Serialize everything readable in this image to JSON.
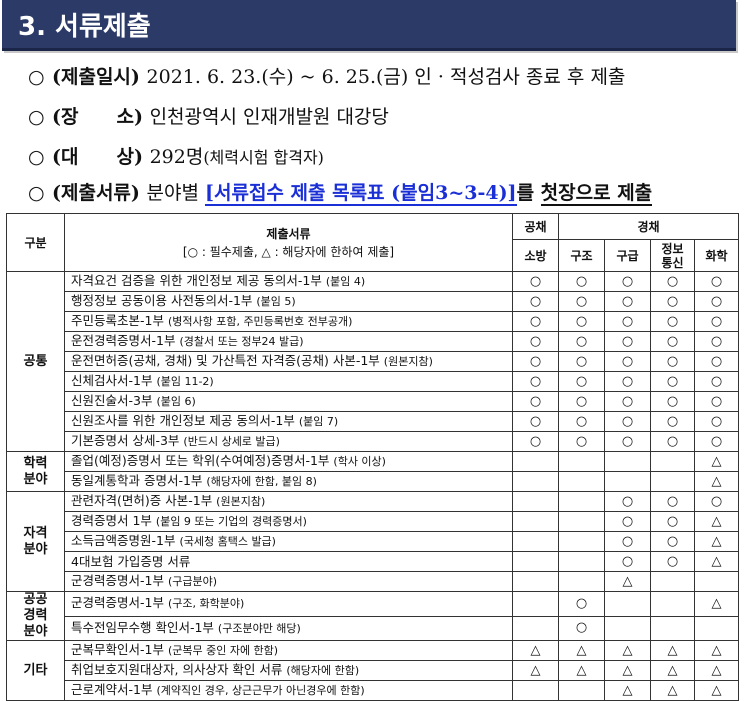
{
  "section_title": "3. 서류제출",
  "bullet_symbol": "○",
  "info": [
    {
      "label": "(제출일시)",
      "parts": [
        {
          "t": "2021. 6. 23.(수) ~ 6. 25.(금) 인 · 적성검사 종료 후 제출",
          "s": ""
        }
      ]
    },
    {
      "label": "(장　　소)",
      "parts": [
        {
          "t": "인천광역시 인재개발원 대강당",
          "s": ""
        }
      ]
    },
    {
      "label": "(대　　상)",
      "parts": [
        {
          "t": "292명",
          "s": ""
        },
        {
          "t": "(체력시험 합격자)",
          "s": "small"
        }
      ]
    },
    {
      "label": "(제출서류)",
      "parts": [
        {
          "t": "분야별 ",
          "s": ""
        },
        {
          "t": "[서류접수 제출 목록표 (붙임3~3-4)]",
          "s": "blue"
        },
        {
          "t": "를 ",
          "s": "bold"
        },
        {
          "t": "첫장으로 제출",
          "s": "ul"
        }
      ]
    }
  ],
  "table": {
    "col_category": "구분",
    "col_docs_title": "제출서류",
    "col_docs_legend": "[○ : 필수제출, △ : 해당자에 한하여 제출]",
    "group_public": "공채",
    "group_career": "경채",
    "fields": [
      "소방",
      "구조",
      "구급",
      "정보\n통신",
      "화학"
    ],
    "groups": [
      {
        "name": "공통",
        "rows": [
          {
            "doc": "자격요건 검증을 위한 개인정보 제공 동의서-1부",
            "note": "(붙임 4)",
            "marks": [
              "○",
              "○",
              "○",
              "○",
              "○"
            ]
          },
          {
            "doc": "행정정보 공동이용 사전동의서-1부",
            "note": "(붙임 5)",
            "marks": [
              "○",
              "○",
              "○",
              "○",
              "○"
            ]
          },
          {
            "doc": "주민등록초본-1부",
            "note": "(병적사항 포함, 주민등록번호 전부공개)",
            "marks": [
              "○",
              "○",
              "○",
              "○",
              "○"
            ]
          },
          {
            "doc": "운전경력증명서-1부",
            "note": "(경찰서 또는 정부24 발급)",
            "marks": [
              "○",
              "○",
              "○",
              "○",
              "○"
            ]
          },
          {
            "doc": "운전면허증(공채, 경채) 및 가산특전 자격증(공채) 사본-1부",
            "note": "(원본지참)",
            "marks": [
              "○",
              "○",
              "○",
              "○",
              "○"
            ]
          },
          {
            "doc": "신체검사서-1부",
            "note": "(붙임 11-2)",
            "marks": [
              "○",
              "○",
              "○",
              "○",
              "○"
            ]
          },
          {
            "doc": "신원진술서-3부",
            "note": "(붙임 6)",
            "marks": [
              "○",
              "○",
              "○",
              "○",
              "○"
            ]
          },
          {
            "doc": "신원조사를 위한 개인정보 제공 동의서-1부",
            "note": "(붙임 7)",
            "marks": [
              "○",
              "○",
              "○",
              "○",
              "○"
            ]
          },
          {
            "doc": "기본증명서 상세-3부",
            "note": "(반드시 상세로 발급)",
            "marks": [
              "○",
              "○",
              "○",
              "○",
              "○"
            ]
          }
        ]
      },
      {
        "name": "학력\n분야",
        "rows": [
          {
            "doc": "졸업(예정)증명서 또는 학위(수여예정)증명서-1부",
            "note": "(학사 이상)",
            "marks": [
              "",
              "",
              "",
              "",
              "△"
            ]
          },
          {
            "doc": "동일계통학과 증명서-1부",
            "note": "(해당자에 한함, 붙임 8)",
            "marks": [
              "",
              "",
              "",
              "",
              "△"
            ]
          }
        ]
      },
      {
        "name": "자격\n분야",
        "rows": [
          {
            "doc": "관련자격(면허)증 사본-1부",
            "note": "(원본지참)",
            "marks": [
              "",
              "",
              "○",
              "○",
              "○"
            ]
          },
          {
            "doc": "경력증명서 1부",
            "note": "(붙임 9 또는 기업의 경력증명서)",
            "marks": [
              "",
              "",
              "○",
              "○",
              "△"
            ]
          },
          {
            "doc": "소득금액증명원-1부",
            "note": "(국세청 홈택스 발급)",
            "marks": [
              "",
              "",
              "○",
              "○",
              "△"
            ]
          },
          {
            "doc": "4대보험 가입증명 서류",
            "note": "",
            "marks": [
              "",
              "",
              "○",
              "○",
              "△"
            ]
          },
          {
            "doc": "군경력증명서-1부",
            "note": "(구급분야)",
            "marks": [
              "",
              "",
              "△",
              "",
              ""
            ]
          }
        ]
      },
      {
        "name": "공공\n경력\n분야",
        "rows": [
          {
            "doc": "군경력증명서-1부",
            "note": "(구조, 화학분야)",
            "marks": [
              "",
              "○",
              "",
              "",
              "△"
            ]
          },
          {
            "doc": "특수전임무수행 확인서-1부",
            "note": "(구조분야만 해당)",
            "marks": [
              "",
              "○",
              "",
              "",
              ""
            ]
          }
        ]
      },
      {
        "name": "기타",
        "rows": [
          {
            "doc": "군복무확인서-1부",
            "note": "(군복무 중인 자에 한함)",
            "marks": [
              "△",
              "△",
              "△",
              "△",
              "△"
            ]
          },
          {
            "doc": "취업보호지원대상자, 의사상자 확인 서류",
            "note": "(해당자에 한함)",
            "marks": [
              "△",
              "△",
              "△",
              "△",
              "△"
            ]
          },
          {
            "doc": "근로계약서-1부",
            "note": "(계약직인 경우, 상근근무가 아닌경우에 한함)",
            "marks": [
              "",
              "",
              "△",
              "△",
              "△"
            ]
          }
        ]
      }
    ]
  }
}
